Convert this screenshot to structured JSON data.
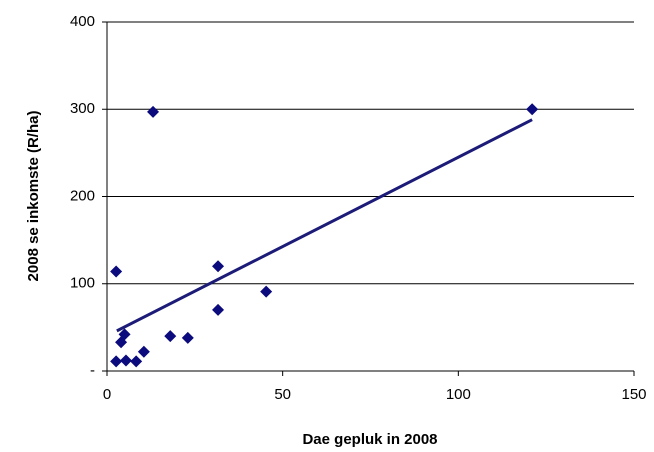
{
  "chart_data": {
    "type": "scatter",
    "x_label": "Dae gepluk in 2008",
    "y_label": "2008 se inkomste (R/ha)",
    "xlim": [
      0,
      150
    ],
    "xticks": [
      0,
      50,
      100,
      150
    ],
    "ylim": [
      0,
      400
    ],
    "yticks": [
      {
        "value": 0,
        "label": "-"
      },
      100,
      200,
      300,
      400
    ],
    "grid": true,
    "series": [
      {
        "type": "scatter",
        "color": "#0b0b7d",
        "x": [
          121,
          13.1,
          2.6,
          31.6,
          31.6,
          45.3,
          4,
          5,
          18,
          23,
          10.5,
          2.6,
          5.4,
          8.3
        ],
        "values": [
          300,
          297,
          114,
          120,
          70,
          91,
          33,
          42,
          40,
          38,
          22,
          11,
          12,
          11
        ]
      },
      {
        "type": "line",
        "color": "#1c1c78",
        "x": [
          2.8,
          121
        ],
        "values": [
          46,
          288
        ]
      }
    ]
  }
}
